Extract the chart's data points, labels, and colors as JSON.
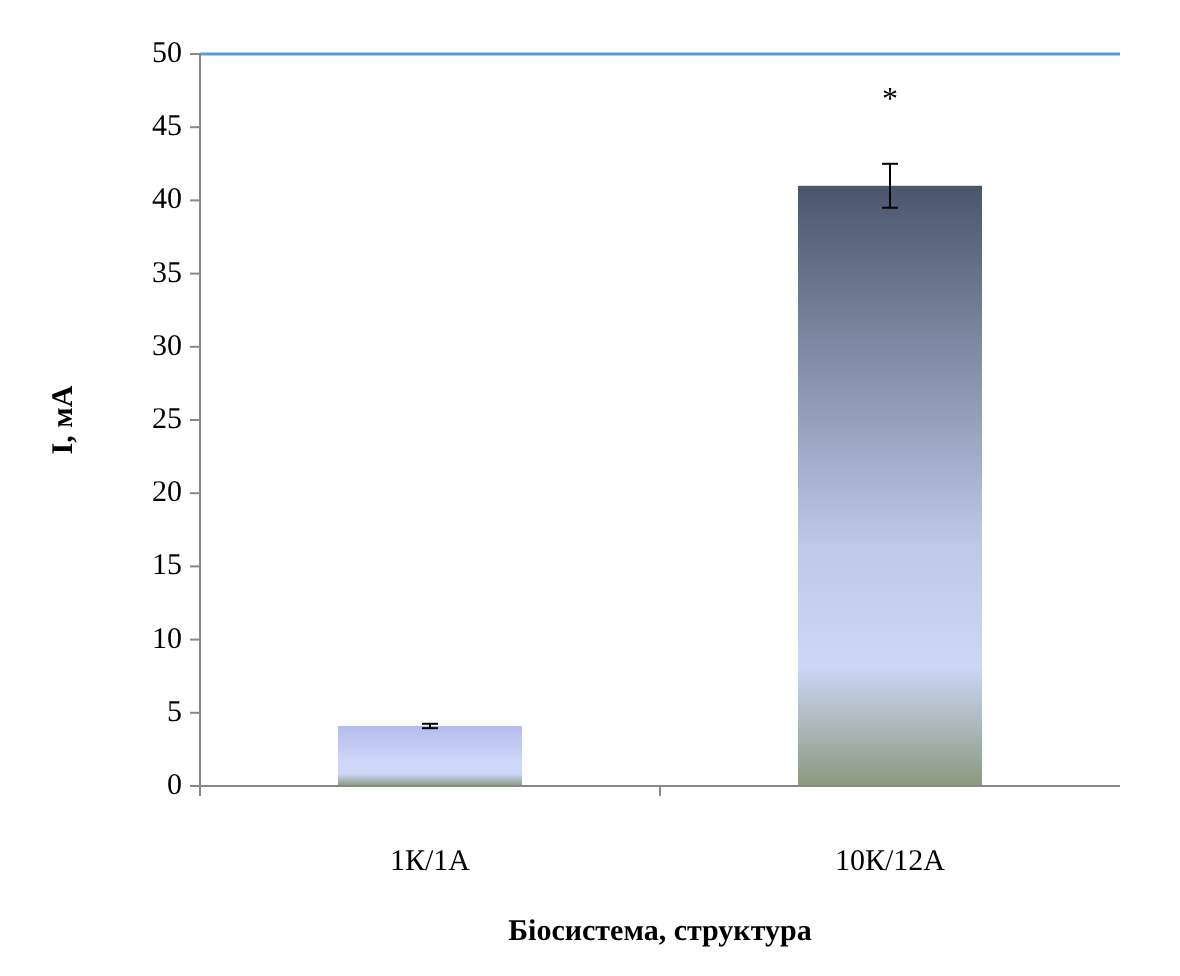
{
  "chart_data": {
    "type": "bar",
    "xlabel": "Біосистема, структура",
    "ylabel": "I, мА",
    "categories": [
      "1К/1А",
      "10К/12А"
    ],
    "values": [
      4.1,
      41
    ],
    "colors": [
      "#b4bcec",
      "#4a566c"
    ],
    "errors": [
      0.15,
      1.5
    ],
    "ylim": [
      0,
      50
    ],
    "yticks": [
      0,
      5,
      10,
      15,
      20,
      25,
      30,
      35,
      40,
      45,
      50
    ],
    "annotations": [
      "*"
    ]
  }
}
